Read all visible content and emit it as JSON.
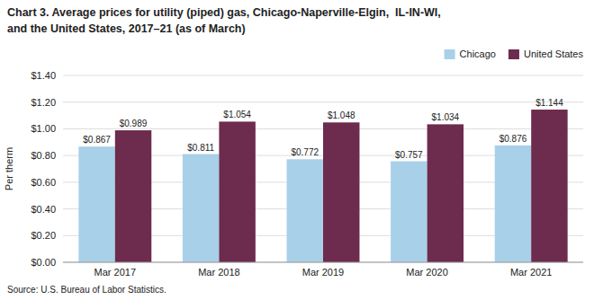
{
  "chart_data": {
    "type": "bar",
    "title": [
      "Chart 3. Average prices for utility (piped) gas, Chicago-Naperville-Elgin,  IL-IN-WI,",
      "and the United States, 2017–21 (as of March)"
    ],
    "source": "Source: U.S. Bureau of Labor Statistics.",
    "ylabel": "Per therm",
    "categories": [
      "Mar 2017",
      "Mar 2018",
      "Mar 2019",
      "Mar 2020",
      "Mar 2021"
    ],
    "series": [
      {
        "name": "Chicago",
        "color": "#a8d0e8",
        "values": [
          0.867,
          0.811,
          0.772,
          0.757,
          0.876
        ],
        "value_labels": [
          "$0.867",
          "$0.811",
          "$0.772",
          "$0.757",
          "$0.876"
        ]
      },
      {
        "name": "United States",
        "color": "#6d2b4e",
        "values": [
          0.989,
          1.054,
          1.048,
          1.034,
          1.144
        ],
        "value_labels": [
          "$0.989",
          "$1.054",
          "$1.048",
          "$1.034",
          "$1.144"
        ]
      }
    ],
    "ylim": [
      0,
      1.4
    ],
    "yticks": [
      {
        "value": 0.0,
        "label": "$0.00"
      },
      {
        "value": 0.2,
        "label": "$0.20"
      },
      {
        "value": 0.4,
        "label": "$0.40"
      },
      {
        "value": 0.6,
        "label": "$0.60"
      },
      {
        "value": 0.8,
        "label": "$0.80"
      },
      {
        "value": 1.0,
        "label": "$1.00"
      },
      {
        "value": 1.2,
        "label": "$1.20"
      },
      {
        "value": 1.4,
        "label": "$1.40"
      }
    ],
    "grid": true,
    "legend": "top-right",
    "data_labels": true
  }
}
